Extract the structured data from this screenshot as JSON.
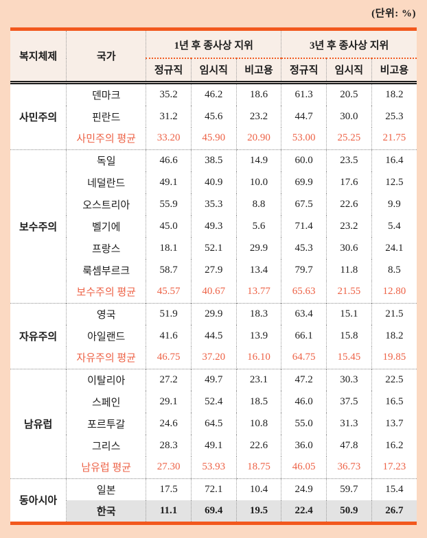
{
  "unit_label": "(단위: %)",
  "colors": {
    "page_background": "#FBD9C2",
    "accent_orange": "#F2581D",
    "header_cell_background": "#F8EEE7",
    "average_text": "#ED6145",
    "highlight_row_background": "#E3E3E3",
    "body_text": "#1C1C1C"
  },
  "table": {
    "header": {
      "regime": "복지체제",
      "country": "국가",
      "year1": "1년 후 종사상 지위",
      "year3": "3년 후 종사상 지위",
      "sub": [
        "정규직",
        "임시직",
        "비고용"
      ]
    },
    "groups": [
      {
        "regime": "사민주의",
        "rows": [
          {
            "country": "덴마크",
            "values": [
              "35.2",
              "46.2",
              "18.6",
              "61.3",
              "20.5",
              "18.2"
            ]
          },
          {
            "country": "핀란드",
            "values": [
              "31.2",
              "45.6",
              "23.2",
              "44.7",
              "30.0",
              "25.3"
            ]
          },
          {
            "country": "사민주의 평균",
            "values": [
              "33.20",
              "45.90",
              "20.90",
              "53.00",
              "25.25",
              "21.75"
            ],
            "type": "average"
          }
        ]
      },
      {
        "regime": "보수주의",
        "rows": [
          {
            "country": "독일",
            "values": [
              "46.6",
              "38.5",
              "14.9",
              "60.0",
              "23.5",
              "16.4"
            ]
          },
          {
            "country": "네덜란드",
            "values": [
              "49.1",
              "40.9",
              "10.0",
              "69.9",
              "17.6",
              "12.5"
            ]
          },
          {
            "country": "오스트리아",
            "values": [
              "55.9",
              "35.3",
              "8.8",
              "67.5",
              "22.6",
              "9.9"
            ]
          },
          {
            "country": "벨기에",
            "values": [
              "45.0",
              "49.3",
              "5.6",
              "71.4",
              "23.2",
              "5.4"
            ]
          },
          {
            "country": "프랑스",
            "values": [
              "18.1",
              "52.1",
              "29.9",
              "45.3",
              "30.6",
              "24.1"
            ]
          },
          {
            "country": "룩셈부르크",
            "values": [
              "58.7",
              "27.9",
              "13.4",
              "79.7",
              "11.8",
              "8.5"
            ]
          },
          {
            "country": "보수주의 평균",
            "values": [
              "45.57",
              "40.67",
              "13.77",
              "65.63",
              "21.55",
              "12.80"
            ],
            "type": "average"
          }
        ]
      },
      {
        "regime": "자유주의",
        "rows": [
          {
            "country": "영국",
            "values": [
              "51.9",
              "29.9",
              "18.3",
              "63.4",
              "15.1",
              "21.5"
            ]
          },
          {
            "country": "아일랜드",
            "values": [
              "41.6",
              "44.5",
              "13.9",
              "66.1",
              "15.8",
              "18.2"
            ]
          },
          {
            "country": "자유주의 평균",
            "values": [
              "46.75",
              "37.20",
              "16.10",
              "64.75",
              "15.45",
              "19.85"
            ],
            "type": "average"
          }
        ]
      },
      {
        "regime": "남유럽",
        "rows": [
          {
            "country": "이탈리아",
            "values": [
              "27.2",
              "49.7",
              "23.1",
              "47.2",
              "30.3",
              "22.5"
            ]
          },
          {
            "country": "스페인",
            "values": [
              "29.1",
              "52.4",
              "18.5",
              "46.0",
              "37.5",
              "16.5"
            ]
          },
          {
            "country": "포르투갈",
            "values": [
              "24.6",
              "64.5",
              "10.8",
              "55.0",
              "31.3",
              "13.7"
            ]
          },
          {
            "country": "그리스",
            "values": [
              "28.3",
              "49.1",
              "22.6",
              "36.0",
              "47.8",
              "16.2"
            ]
          },
          {
            "country": "남유럽 평균",
            "values": [
              "27.30",
              "53.93",
              "18.75",
              "46.05",
              "36.73",
              "17.23"
            ],
            "type": "average"
          }
        ]
      },
      {
        "regime": "동아시아",
        "rows": [
          {
            "country": "일본",
            "values": [
              "17.5",
              "72.1",
              "10.4",
              "24.9",
              "59.7",
              "15.4"
            ]
          },
          {
            "country": "한국",
            "values": [
              "11.1",
              "69.4",
              "19.5",
              "22.4",
              "50.9",
              "26.7"
            ],
            "type": "highlight"
          }
        ]
      }
    ]
  }
}
